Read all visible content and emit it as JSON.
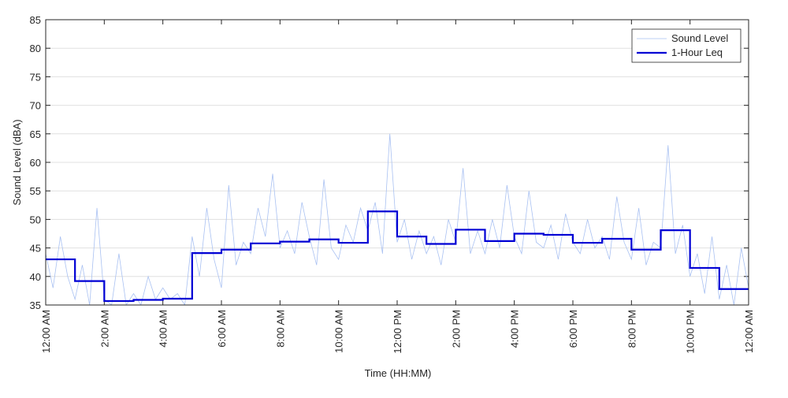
{
  "chart_data": {
    "type": "line",
    "xlabel": "Time (HH:MM)",
    "ylabel": "Sound Level (dBA)",
    "xlim": [
      0,
      24
    ],
    "xticks": [
      {
        "value": 0,
        "label": "12:00 AM"
      },
      {
        "value": 2,
        "label": "2:00 AM"
      },
      {
        "value": 4,
        "label": "4:00 AM"
      },
      {
        "value": 6,
        "label": "6:00 AM"
      },
      {
        "value": 8,
        "label": "8:00 AM"
      },
      {
        "value": 10,
        "label": "10:00 AM"
      },
      {
        "value": 12,
        "label": "12:00 PM"
      },
      {
        "value": 14,
        "label": "2:00 PM"
      },
      {
        "value": 16,
        "label": "4:00 PM"
      },
      {
        "value": 18,
        "label": "6:00 PM"
      },
      {
        "value": 20,
        "label": "8:00 PM"
      },
      {
        "value": 22,
        "label": "10:00 PM"
      },
      {
        "value": 24,
        "label": "12:00 AM"
      }
    ],
    "ylim": [
      35,
      85
    ],
    "yticks": [
      35,
      40,
      45,
      50,
      55,
      60,
      65,
      70,
      75,
      80,
      85
    ],
    "grid": true,
    "legend": "upper right",
    "series": [
      {
        "name": "Sound Level",
        "color": "#a9c1f2",
        "width": 0.8,
        "x": [
          0,
          0.25,
          0.5,
          0.75,
          1,
          1.25,
          1.5,
          1.75,
          2,
          2.25,
          2.5,
          2.75,
          3,
          3.25,
          3.5,
          3.75,
          4,
          4.25,
          4.5,
          4.75,
          5,
          5.25,
          5.5,
          5.75,
          6,
          6.25,
          6.5,
          6.75,
          7,
          7.25,
          7.5,
          7.75,
          8,
          8.25,
          8.5,
          8.75,
          9,
          9.25,
          9.5,
          9.75,
          10,
          10.25,
          10.5,
          10.75,
          11,
          11.25,
          11.5,
          11.75,
          12,
          12.25,
          12.5,
          12.75,
          13,
          13.25,
          13.5,
          13.75,
          14,
          14.25,
          14.5,
          14.75,
          15,
          15.25,
          15.5,
          15.75,
          16,
          16.25,
          16.5,
          16.75,
          17,
          17.25,
          17.5,
          17.75,
          18,
          18.25,
          18.5,
          18.75,
          19,
          19.25,
          19.5,
          19.75,
          20,
          20.25,
          20.5,
          20.75,
          21,
          21.25,
          21.5,
          21.75,
          22,
          22.25,
          22.5,
          22.75,
          23,
          23.25,
          23.5,
          23.75,
          24
        ],
        "values": [
          44,
          38,
          47,
          40,
          36,
          42,
          35,
          52,
          36,
          35,
          44,
          35,
          37,
          35,
          40,
          36,
          38,
          36,
          37,
          35,
          47,
          40,
          52,
          43,
          38,
          56,
          42,
          46,
          44,
          52,
          47,
          58,
          45,
          48,
          44,
          53,
          47,
          42,
          57,
          45,
          43,
          49,
          46,
          52,
          48,
          53,
          44,
          65,
          46,
          50,
          43,
          48,
          44,
          47,
          42,
          50,
          46,
          59,
          44,
          48,
          44,
          50,
          45,
          56,
          47,
          44,
          55,
          46,
          45,
          49,
          43,
          51,
          46,
          44,
          50,
          45,
          47,
          43,
          54,
          46,
          43,
          52,
          42,
          46,
          45,
          63,
          44,
          49,
          40,
          44,
          37,
          47,
          36,
          42,
          35,
          45,
          38
        ]
      },
      {
        "name": "1-Hour Leq",
        "color": "#0000d4",
        "width": 2.2,
        "drawstyle": "steps-post",
        "x": [
          0,
          1,
          2,
          3,
          4,
          5,
          6,
          7,
          8,
          9,
          10,
          11,
          12,
          13,
          14,
          15,
          16,
          17,
          18,
          19,
          20,
          21,
          22,
          23
        ],
        "values": [
          43,
          39.2,
          35.7,
          35.9,
          36.1,
          44.1,
          44.7,
          45.8,
          46.1,
          46.5,
          45.9,
          51.4,
          47,
          45.7,
          48.2,
          46.2,
          47.5,
          47.3,
          45.9,
          46.6,
          44.7,
          48.1,
          41.5,
          37.8
        ]
      }
    ]
  }
}
